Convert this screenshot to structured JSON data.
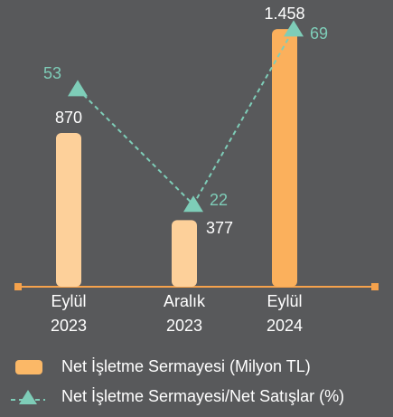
{
  "chart_data": {
    "type": "bar",
    "categories": [
      [
        "Eylül",
        "2023"
      ],
      [
        "Aralık",
        "2023"
      ],
      [
        "Eylül",
        "2024"
      ]
    ],
    "ylim": [
      0,
      1520
    ],
    "y2lim": [
      0,
      72
    ],
    "axis_color": "#f5a24c",
    "series": [
      {
        "name": "Net İşletme Sermayesi (Milyon TL)",
        "type": "bar",
        "color": "#fbb867",
        "colors": [
          "#fdd09a",
          "#fdd09a",
          "#fbb05c"
        ],
        "values": [
          870,
          377,
          1458
        ],
        "value_labels": [
          "870",
          "377",
          "1.458"
        ]
      },
      {
        "name": "Net İşletme Sermayesi/Net Satışlar (%)",
        "type": "line",
        "axis": "y2",
        "color": "#7ecdb8",
        "values": [
          53,
          22,
          69
        ]
      }
    ]
  }
}
